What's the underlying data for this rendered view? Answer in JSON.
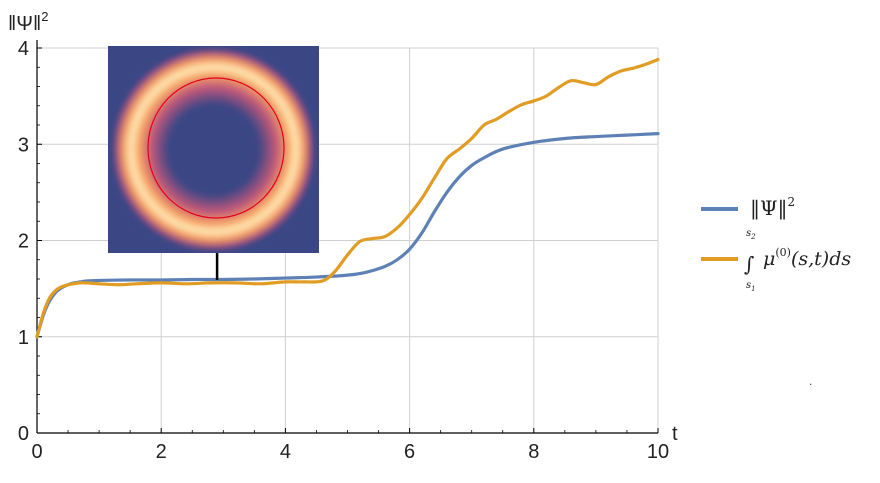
{
  "chart_data": {
    "type": "line",
    "title": "",
    "xlabel": "t",
    "ylabel": "||Ψ||²",
    "xlim": [
      0,
      10
    ],
    "ylim": [
      0,
      4
    ],
    "x_ticks": [
      "0",
      "2",
      "4",
      "6",
      "8",
      "10"
    ],
    "y_ticks": [
      "0",
      "1",
      "2",
      "3",
      "4"
    ],
    "grid": true,
    "legend_position": "right",
    "colors": {
      "norm": "#5E81B5",
      "integral": "#E19C24",
      "grid": "#D0D0D0",
      "axis": "#000000"
    },
    "series": [
      {
        "key": "norm",
        "name": "‖Ψ‖²",
        "x": [
          0,
          0.1,
          0.2,
          0.3,
          0.4,
          0.5,
          0.6,
          0.7,
          0.8,
          1.0,
          1.5,
          2,
          2.5,
          3,
          3.5,
          4,
          4.5,
          5,
          5.3,
          5.6,
          5.8,
          6.0,
          6.2,
          6.4,
          6.6,
          6.8,
          7.0,
          7.2,
          7.5,
          8.0,
          8.5,
          9.0,
          9.5,
          10
        ],
        "values": [
          1.0,
          1.22,
          1.37,
          1.46,
          1.51,
          1.54,
          1.56,
          1.57,
          1.58,
          1.585,
          1.59,
          1.59,
          1.595,
          1.595,
          1.6,
          1.61,
          1.62,
          1.64,
          1.67,
          1.73,
          1.8,
          1.91,
          2.08,
          2.3,
          2.5,
          2.66,
          2.78,
          2.86,
          2.95,
          3.02,
          3.06,
          3.08,
          3.095,
          3.11
        ]
      },
      {
        "key": "integral",
        "name": "∫ μ⁽⁰⁾(s,t) ds",
        "x": [
          0,
          0.1,
          0.2,
          0.3,
          0.4,
          0.5,
          0.7,
          1.0,
          1.3,
          1.6,
          2.0,
          2.4,
          2.8,
          3.2,
          3.6,
          4.0,
          4.3,
          4.6,
          4.8,
          5.0,
          5.2,
          5.4,
          5.6,
          5.8,
          6.0,
          6.2,
          6.4,
          6.6,
          6.8,
          7.0,
          7.2,
          7.4,
          7.6,
          7.8,
          8.0,
          8.2,
          8.4,
          8.6,
          8.8,
          9.0,
          9.2,
          9.4,
          9.6,
          9.8,
          10
        ],
        "values": [
          1.0,
          1.24,
          1.4,
          1.48,
          1.52,
          1.54,
          1.56,
          1.55,
          1.54,
          1.55,
          1.56,
          1.55,
          1.56,
          1.56,
          1.55,
          1.57,
          1.57,
          1.58,
          1.68,
          1.85,
          1.99,
          2.02,
          2.04,
          2.13,
          2.27,
          2.44,
          2.65,
          2.85,
          2.95,
          3.06,
          3.2,
          3.26,
          3.34,
          3.41,
          3.45,
          3.5,
          3.59,
          3.66,
          3.64,
          3.62,
          3.7,
          3.76,
          3.79,
          3.83,
          3.88
        ]
      }
    ],
    "legend": {
      "norm_label": "‖Ψ‖",
      "norm_sup": "2",
      "integral_symbol": "∫",
      "integral_upper": "s",
      "integral_upper_sub": "2",
      "integral_lower": "s",
      "integral_lower_sub": "1",
      "integral_mu": "μ",
      "integral_sup": "(0)",
      "integral_rest": "(s,t)ds"
    },
    "inset": {
      "description_free": true,
      "points_to_x": 2.9,
      "background_color": "#3B4785",
      "ring_color": "#FFE9B0",
      "contour_color": "#E3001B"
    },
    "stray_mark": "."
  }
}
